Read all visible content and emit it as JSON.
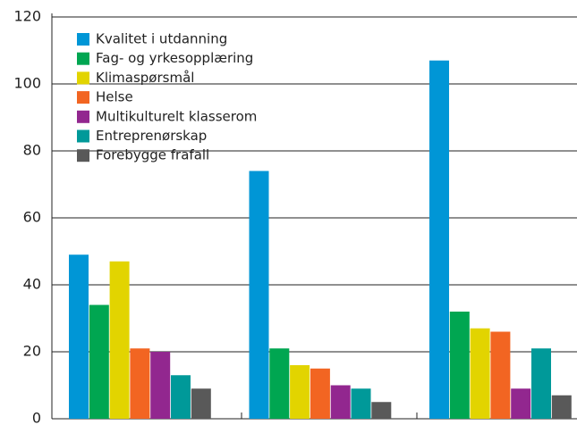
{
  "chart_data": {
    "type": "bar",
    "categories": [
      null,
      null,
      null
    ],
    "series": [
      {
        "name": "Kvalitet i utdanning",
        "color": "#0096d6",
        "values": [
          49,
          74,
          107
        ]
      },
      {
        "name": "Fag- og yrkesopplæring",
        "color": "#00a651",
        "values": [
          34,
          21,
          32
        ]
      },
      {
        "name": "Klimaspørsmål",
        "color": "#e2d400",
        "values": [
          47,
          16,
          27
        ]
      },
      {
        "name": "Helse",
        "color": "#f26522",
        "values": [
          21,
          15,
          26
        ]
      },
      {
        "name": "Multikulturelt klasserom",
        "color": "#92278f",
        "values": [
          20,
          10,
          9
        ]
      },
      {
        "name": "Entreprenørskap",
        "color": "#009999",
        "values": [
          13,
          9,
          21
        ]
      },
      {
        "name": "Forebygge frafall",
        "color": "#595959",
        "values": [
          9,
          5,
          7
        ]
      }
    ],
    "ylim": [
      0,
      120
    ],
    "yticks": [
      0,
      20,
      40,
      60,
      80,
      100,
      120
    ],
    "grid": true,
    "legend": "upper left"
  }
}
